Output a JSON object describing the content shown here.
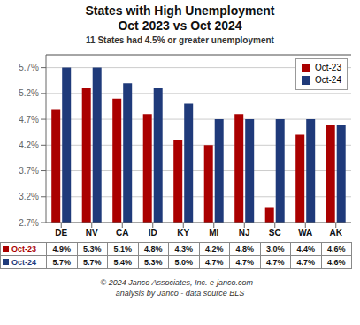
{
  "chart_data": {
    "type": "bar",
    "title": "States with High Unemployment\nOct 2023 vs Oct 2024",
    "subtitle": "11 States had 4.5% or greater unemployment",
    "annotations": [
      "© 2024 Janco Associates, Inc. e-janco.com –\nanalysis by Janco - data source BLS"
    ],
    "categories": [
      "DE",
      "NV",
      "CA",
      "ID",
      "KY",
      "MI",
      "NJ",
      "SC",
      "WA",
      "AK"
    ],
    "series": [
      {
        "name": "Oct-23",
        "color": "#AA0000",
        "values": [
          4.9,
          5.3,
          5.1,
          4.8,
          4.3,
          4.2,
          4.8,
          3.0,
          4.4,
          4.6
        ],
        "value_labels": [
          "4.9%",
          "5.3%",
          "5.1%",
          "4.8%",
          "4.3%",
          "4.2%",
          "4.8%",
          "3.0%",
          "4.4%",
          "4.6%"
        ]
      },
      {
        "name": "Oct-24",
        "color": "#1F3A7A",
        "values": [
          5.7,
          5.7,
          5.4,
          5.3,
          5.0,
          4.7,
          4.7,
          4.7,
          4.7,
          4.6
        ],
        "value_labels": [
          "5.7%",
          "5.7%",
          "5.4%",
          "5.3%",
          "5.0%",
          "4.7%",
          "4.7%",
          "4.7%",
          "4.7%",
          "4.6%"
        ]
      }
    ],
    "ylim": [
      2.7,
      5.95
    ],
    "yticks": [
      {
        "value": 2.7,
        "label": "2.7%"
      },
      {
        "value": 3.2,
        "label": "3.2%"
      },
      {
        "value": 3.7,
        "label": "3.7%"
      },
      {
        "value": 4.2,
        "label": "4.2%"
      },
      {
        "value": 4.7,
        "label": "4.7%"
      },
      {
        "value": 5.2,
        "label": "5.2%"
      },
      {
        "value": 5.7,
        "label": "5.7%"
      }
    ],
    "grid": true,
    "legend": "upper right"
  }
}
